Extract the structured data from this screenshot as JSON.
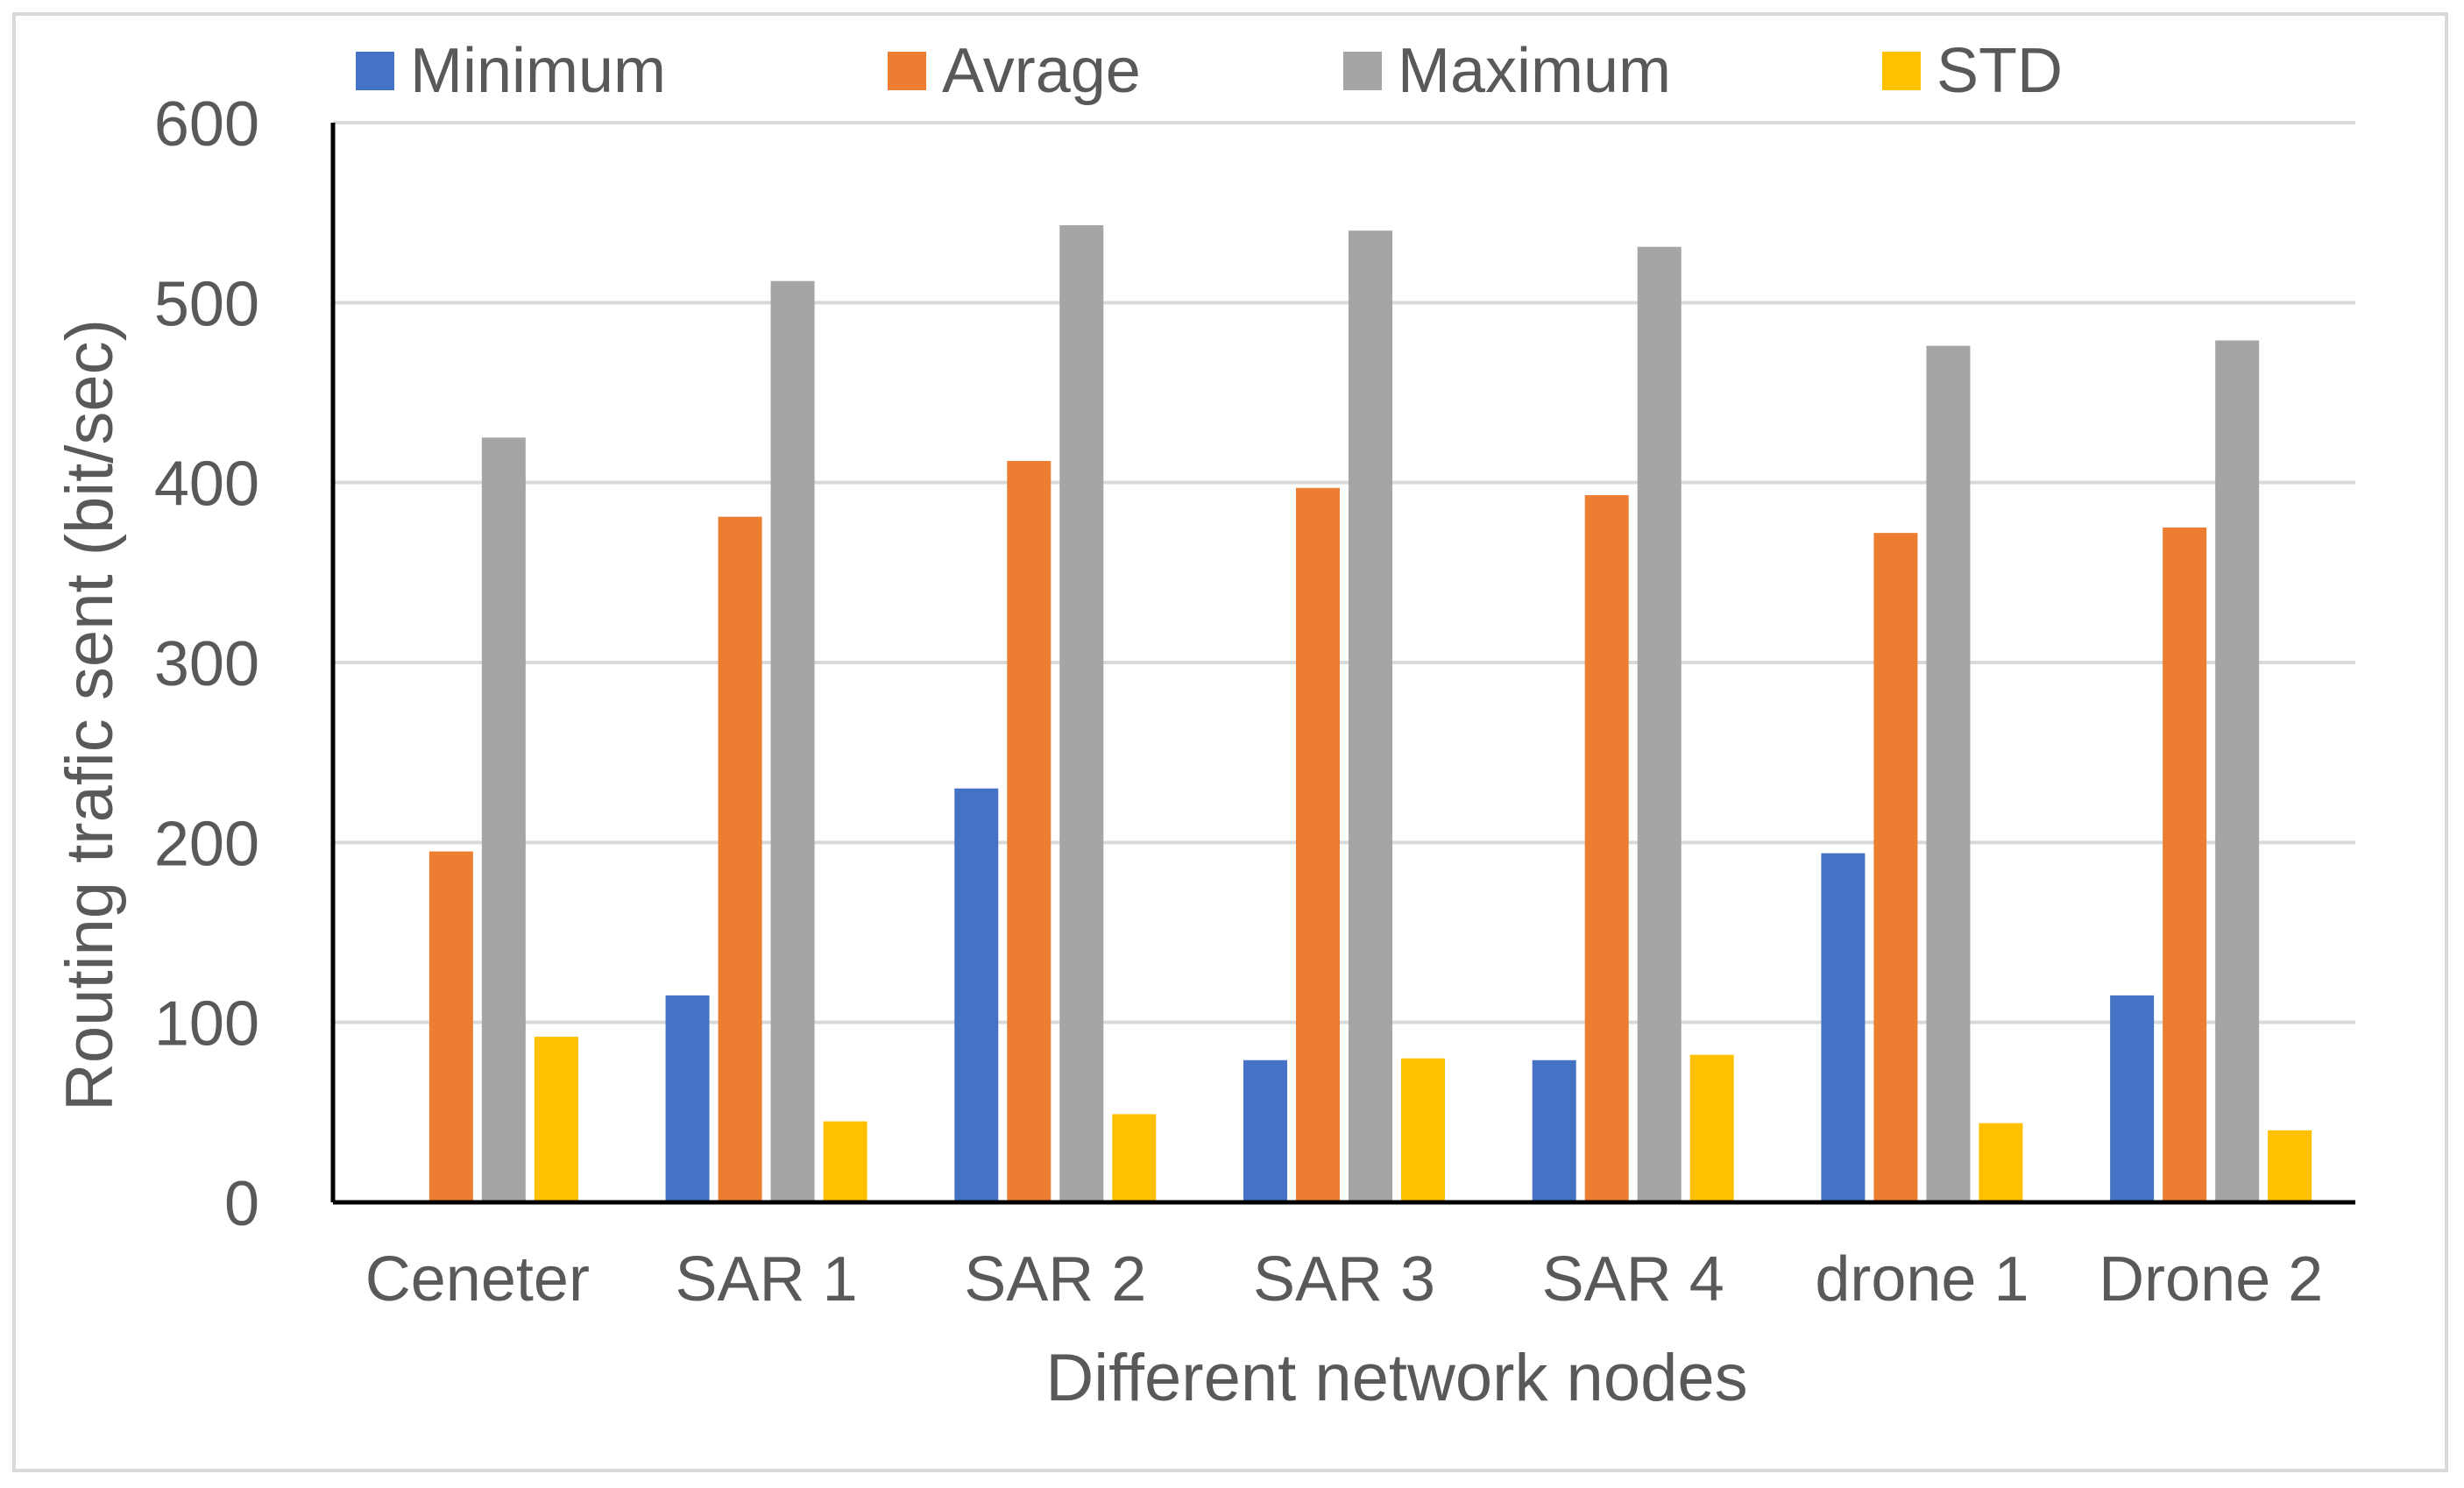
{
  "chart_data": {
    "type": "bar",
    "title": "",
    "xlabel": "Different network nodes",
    "ylabel": "Routing trafic sent (bit/sec)",
    "ylim": [
      0,
      600
    ],
    "yticks": [
      "0",
      "100",
      "200",
      "300",
      "400",
      "500",
      "600"
    ],
    "categories": [
      "Ceneter",
      "SAR 1",
      "SAR 2",
      "SAR 3",
      "SAR 4",
      "drone 1",
      "Drone 2"
    ],
    "series": [
      {
        "name": "Minimum",
        "color": "#4472c4",
        "values": [
          0,
          115,
          230,
          79,
          79,
          194,
          115
        ]
      },
      {
        "name": "Avrage",
        "color": "#ed7d31",
        "values": [
          195,
          381,
          412,
          397,
          393,
          372,
          375
        ]
      },
      {
        "name": "Maximum",
        "color": "#a5a5a5",
        "values": [
          425,
          512,
          543,
          540,
          531,
          476,
          479
        ]
      },
      {
        "name": "STD",
        "color": "#ffc000",
        "values": [
          92,
          45,
          49,
          80,
          82,
          44,
          40
        ]
      }
    ],
    "grid": true,
    "legend_position": "top"
  }
}
